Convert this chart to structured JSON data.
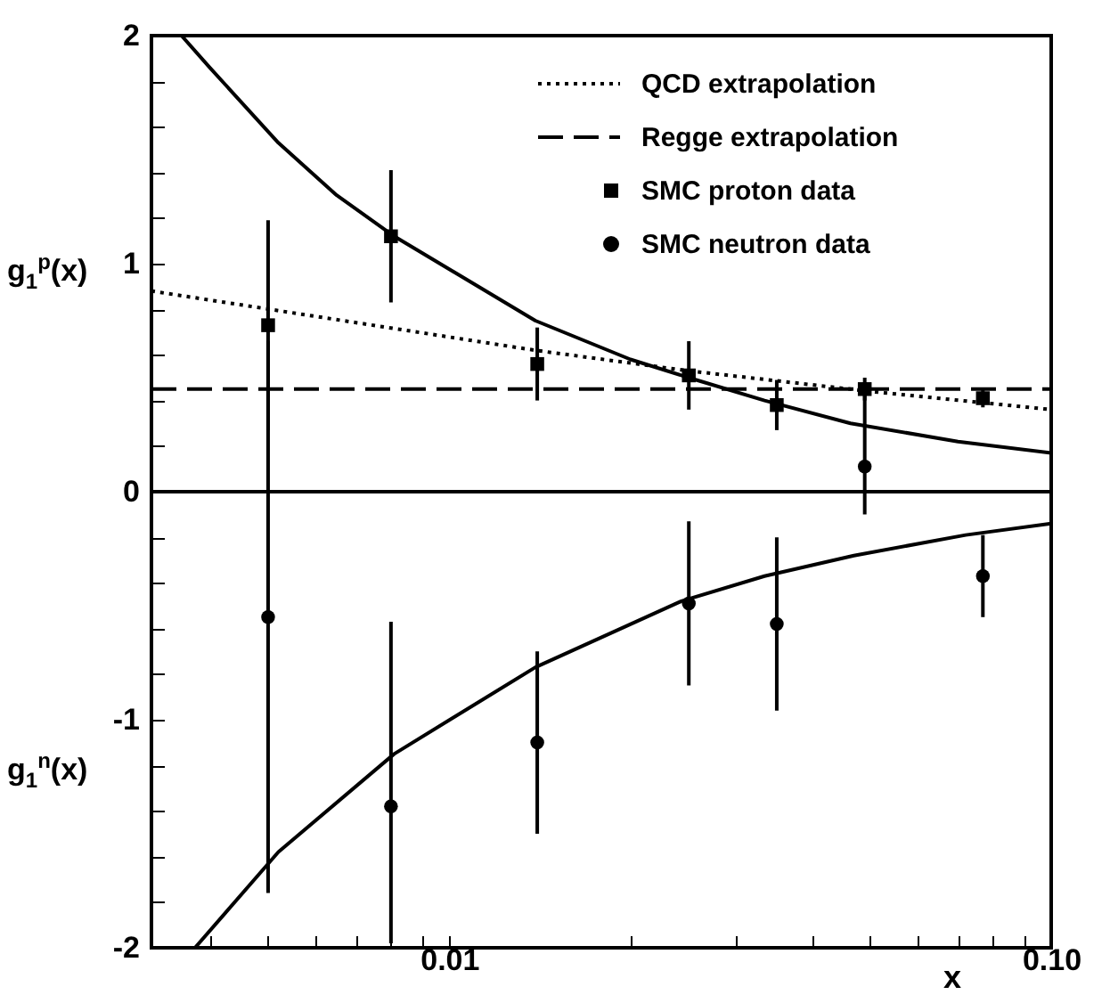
{
  "chart_data": {
    "type": "scatter",
    "ylabel": "g$_{1}$$^{p}$(x)",
    "xlabel": "x",
    "annotations": [
      "g$_{1}$$^{n}$(x)"
    ],
    "log": "x",
    "xlim": [
      0.0032,
      0.1
    ],
    "xticks": [
      {
        "value": 0.004,
        "label": null
      },
      {
        "value": 0.005,
        "label": null
      },
      {
        "value": 0.006,
        "label": null
      },
      {
        "value": 0.007,
        "label": null
      },
      {
        "value": 0.008,
        "label": null
      },
      {
        "value": 0.009,
        "label": null
      },
      0.01,
      {
        "value": 0.02,
        "label": null
      },
      {
        "value": 0.03,
        "label": null
      },
      {
        "value": 0.04,
        "label": null
      },
      {
        "value": 0.05,
        "label": null
      },
      {
        "value": 0.06,
        "label": null
      },
      {
        "value": 0.07,
        "label": null
      },
      {
        "value": 0.08,
        "label": null
      },
      {
        "value": 0.09,
        "label": null
      },
      {
        "value": 0.1,
        "label": "0.10"
      }
    ],
    "ylim": [
      -2,
      2
    ],
    "yticks": [
      -2,
      {
        "value": -1.8,
        "label": null
      },
      {
        "value": -1.6,
        "label": null
      },
      {
        "value": -1.4,
        "label": null
      },
      {
        "value": -1.2,
        "label": null
      },
      -1,
      {
        "value": -0.8,
        "label": null
      },
      {
        "value": -0.6,
        "label": null
      },
      {
        "value": -0.4,
        "label": null
      },
      {
        "value": -0.2,
        "label": null
      },
      0,
      {
        "value": 0.2,
        "label": null
      },
      {
        "value": 0.4,
        "label": null
      },
      {
        "value": 0.6,
        "label": null
      },
      {
        "value": 0.8,
        "label": null
      },
      1,
      {
        "value": 1.2,
        "label": null
      },
      {
        "value": 1.4,
        "label": null
      },
      {
        "value": 1.6,
        "label": null
      },
      {
        "value": 1.8,
        "label": null
      },
      2
    ],
    "grid": false,
    "legend": "top right",
    "ref_lines": [
      {
        "axis": "y",
        "value": 0,
        "color": "#000000",
        "line_style": "solid"
      }
    ],
    "series": [
      {
        "name": "QCD extrapolation",
        "type": "line",
        "line_style": "dotted",
        "marker": "none",
        "color": "#000000",
        "x": [
          0.0032,
          0.0139,
          0.025,
          0.05,
          0.1
        ],
        "values": [
          0.88,
          0.62,
          0.53,
          0.44,
          0.36
        ]
      },
      {
        "name": "Regge extrapolation",
        "type": "line",
        "line_style": "dashed",
        "marker": "none",
        "color": "#000000",
        "x": [
          0.0032,
          0.1
        ],
        "values": [
          0.45,
          0.45
        ]
      },
      {
        "name": "SMC proton data",
        "type": "scatter",
        "marker": "square",
        "color": "#000000",
        "x": [
          0.005,
          0.008,
          0.014,
          0.025,
          0.035,
          0.049,
          0.077
        ],
        "values": [
          0.73,
          1.12,
          0.56,
          0.51,
          0.38,
          0.45,
          0.41
        ],
        "errors": [
          0.46,
          0.29,
          0.16,
          0.15,
          0.11,
          0.05,
          0.04
        ]
      },
      {
        "name": "SMC neutron data",
        "type": "scatter",
        "marker": "circle",
        "color": "#000000",
        "x": [
          0.005,
          0.008,
          0.014,
          0.025,
          0.035,
          0.049,
          0.077
        ],
        "values": [
          -0.55,
          -1.38,
          -1.1,
          -0.49,
          -0.58,
          0.11,
          -0.37
        ],
        "errors": [
          1.21,
          [
            -1.98,
            -0.57
          ],
          0.4,
          0.36,
          0.38,
          [
            -0.1,
            0.48
          ],
          0.18
        ]
      },
      {
        "type": "line",
        "line_style": "solid",
        "marker": "none",
        "color": "#000000",
        "x": [
          0.00359,
          0.004,
          0.0052,
          0.0065,
          0.0081,
          0.0139,
          0.02,
          0.025,
          0.0334,
          0.0464,
          0.07,
          0.1
        ],
        "values": [
          2.0,
          1.86,
          1.53,
          1.3,
          1.12,
          0.75,
          0.58,
          0.5,
          0.4,
          0.3,
          0.22,
          0.17
        ]
      },
      {
        "type": "line",
        "line_style": "solid",
        "marker": "none",
        "color": "#000000",
        "x": [
          0.00378,
          0.0052,
          0.0081,
          0.0139,
          0.0243,
          0.0334,
          0.047,
          0.0721,
          0.1
        ],
        "values": [
          -2.0,
          -1.58,
          -1.15,
          -0.77,
          -0.48,
          -0.37,
          -0.28,
          -0.19,
          -0.14
        ]
      }
    ]
  }
}
